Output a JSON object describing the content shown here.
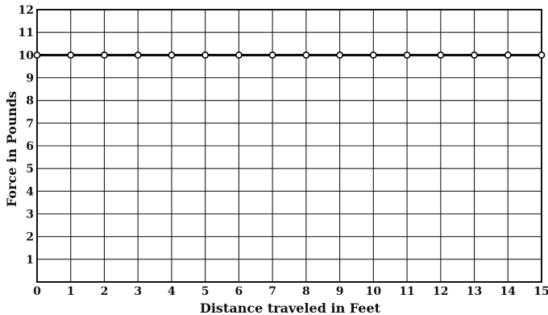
{
  "chart_data": {
    "type": "line",
    "title": "",
    "xlabel": "Distance traveled in Feet",
    "ylabel": "Force in Pounds",
    "xlim": [
      0,
      15
    ],
    "ylim": [
      0,
      12
    ],
    "x_ticks": [
      "0",
      "1",
      "2",
      "3",
      "4",
      "5",
      "6",
      "7",
      "8",
      "9",
      "10",
      "11",
      "12",
      "13",
      "14",
      "15"
    ],
    "y_ticks": [
      "1",
      "2",
      "3",
      "4",
      "5",
      "6",
      "7",
      "8",
      "9",
      "10",
      "11",
      "12"
    ],
    "grid": true,
    "series": [
      {
        "x": [
          0,
          1,
          2,
          3,
          4,
          5,
          6,
          7,
          8,
          9,
          10,
          11,
          12,
          13,
          14,
          15
        ],
        "y": [
          10,
          10,
          10,
          10,
          10,
          10,
          10,
          10,
          10,
          10,
          10,
          10,
          10,
          10,
          10,
          10
        ]
      }
    ]
  }
}
